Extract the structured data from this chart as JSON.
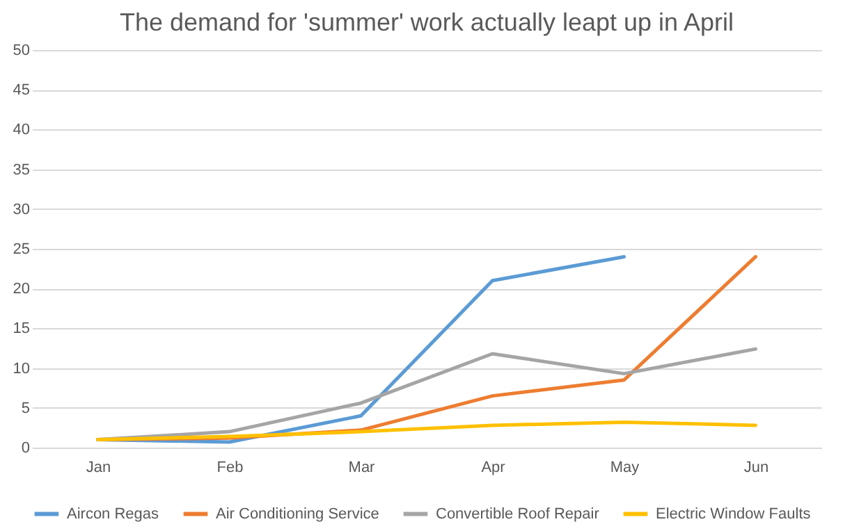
{
  "chart_data": {
    "type": "line",
    "title": "The demand for 'summer' work actually leapt up in April",
    "categories": [
      "Jan",
      "Feb",
      "Mar",
      "Apr",
      "May",
      "Jun"
    ],
    "ylim": [
      0,
      50
    ],
    "yticks": [
      0,
      5,
      10,
      15,
      20,
      25,
      30,
      35,
      40,
      45,
      50
    ],
    "grid": "y",
    "legend": "bottom",
    "marker": "none",
    "line_style": "solid",
    "series": [
      {
        "name": "Aircon Regas",
        "color": "#5b9bd5",
        "values": [
          1,
          0.7,
          4,
          21,
          24,
          null
        ]
      },
      {
        "name": "Air Conditioning Service",
        "color": "#ed7d31",
        "values": [
          1,
          1.2,
          2.2,
          6.5,
          8.5,
          24
        ]
      },
      {
        "name": "Convertible Roof Repair",
        "color": "#a5a5a5",
        "values": [
          1,
          2,
          5.6,
          11.8,
          9.3,
          12.4
        ]
      },
      {
        "name": "Electric Window Faults",
        "color": "#ffc000",
        "values": [
          1,
          1.4,
          2,
          2.8,
          3.2,
          2.8
        ]
      }
    ]
  }
}
